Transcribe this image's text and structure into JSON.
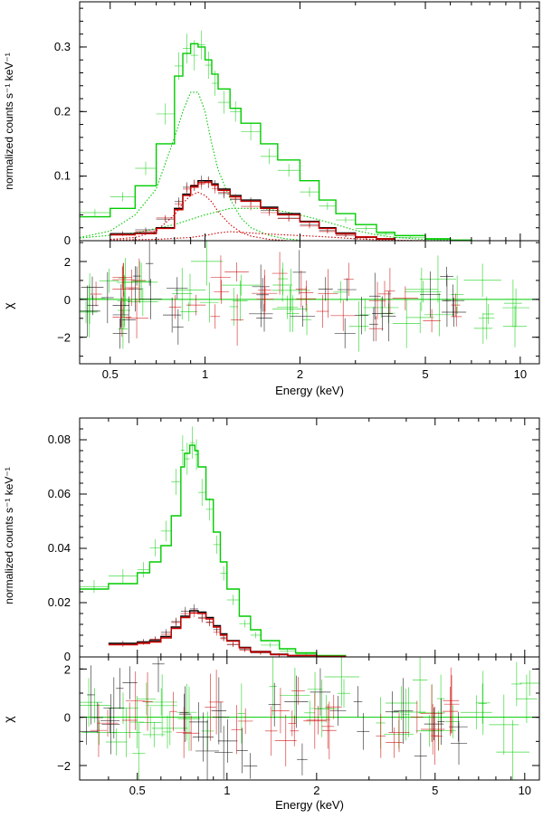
{
  "colors": {
    "black": "#000000",
    "red": "#cc0000",
    "green": "#00cc00"
  },
  "chart_data": [
    {
      "type": "line",
      "xscale": "log",
      "xlabel": "Energy (keV)",
      "xlim": [
        0.4,
        11.5
      ],
      "x_ticks": [
        0.5,
        1,
        2,
        5,
        10
      ],
      "x_tick_labels": [
        "0.5",
        "1",
        "2",
        "5",
        "10"
      ],
      "spectrum": {
        "ylabel": "normalized counts s⁻¹ keV⁻¹",
        "ylim": [
          0,
          0.37
        ],
        "y_ticks": [
          0,
          0.1,
          0.2,
          0.3
        ],
        "y_tick_labels": [
          "0",
          "0.1",
          "0.2",
          "0.3"
        ],
        "series": [
          {
            "color": "green",
            "style": "model",
            "x": [
              0.4,
              0.5,
              0.6,
              0.7,
              0.8,
              0.85,
              0.9,
              0.95,
              1.0,
              1.05,
              1.1,
              1.2,
              1.3,
              1.5,
              1.7,
              2.0,
              2.3,
              2.6,
              3.0,
              3.5,
              4.0,
              5.0,
              6.0,
              7.0
            ],
            "values": [
              0.037,
              0.05,
              0.085,
              0.15,
              0.255,
              0.29,
              0.305,
              0.3,
              0.28,
              0.258,
              0.235,
              0.205,
              0.182,
              0.15,
              0.125,
              0.093,
              0.063,
              0.042,
              0.025,
              0.013,
              0.008,
              0.003,
              0.001,
              0.0005
            ]
          },
          {
            "color": "green",
            "style": "component",
            "x": [
              0.4,
              0.5,
              0.6,
              0.7,
              0.8,
              0.85,
              0.9,
              0.95,
              1.0,
              1.05,
              1.1,
              1.2,
              1.3,
              1.4,
              1.6,
              1.8,
              2.0
            ],
            "values": [
              0.005,
              0.015,
              0.04,
              0.08,
              0.16,
              0.2,
              0.23,
              0.23,
              0.2,
              0.15,
              0.11,
              0.065,
              0.035,
              0.02,
              0.008,
              0.003,
              0.001
            ]
          },
          {
            "color": "green",
            "style": "component",
            "x": [
              0.4,
              0.6,
              0.8,
              1.0,
              1.2,
              1.5,
              1.8,
              2.2,
              2.6,
              3.0,
              3.5,
              4.0,
              5.0,
              6.0
            ],
            "values": [
              0.004,
              0.012,
              0.025,
              0.04,
              0.05,
              0.05,
              0.045,
              0.035,
              0.025,
              0.016,
              0.009,
              0.005,
              0.002,
              0.0008
            ]
          },
          {
            "color": "black",
            "style": "model",
            "x": [
              0.5,
              0.6,
              0.7,
              0.8,
              0.85,
              0.9,
              0.95,
              1.0,
              1.05,
              1.1,
              1.2,
              1.3,
              1.5,
              1.7,
              2.0,
              2.3,
              2.6,
              3.0,
              3.5,
              4.0
            ],
            "values": [
              0.01,
              0.012,
              0.02,
              0.05,
              0.072,
              0.085,
              0.093,
              0.093,
              0.088,
              0.08,
              0.07,
              0.063,
              0.052,
              0.042,
              0.03,
              0.02,
              0.012,
              0.006,
              0.003,
              0.001
            ]
          },
          {
            "color": "red",
            "style": "model",
            "x": [
              0.5,
              0.6,
              0.7,
              0.8,
              0.85,
              0.9,
              0.95,
              1.0,
              1.05,
              1.1,
              1.2,
              1.3,
              1.5,
              1.7,
              2.0,
              2.3,
              2.6,
              3.0,
              3.5,
              4.0
            ],
            "values": [
              0.009,
              0.011,
              0.019,
              0.048,
              0.07,
              0.083,
              0.09,
              0.091,
              0.086,
              0.078,
              0.068,
              0.061,
              0.05,
              0.04,
              0.029,
              0.019,
              0.011,
              0.006,
              0.003,
              0.001
            ]
          },
          {
            "color": "red",
            "style": "component",
            "x": [
              0.5,
              0.6,
              0.7,
              0.8,
              0.85,
              0.9,
              0.95,
              1.0,
              1.05,
              1.1,
              1.2,
              1.3,
              1.4,
              1.6,
              1.8
            ],
            "values": [
              0.002,
              0.005,
              0.015,
              0.04,
              0.058,
              0.07,
              0.075,
              0.07,
              0.06,
              0.045,
              0.025,
              0.013,
              0.007,
              0.002,
              0.0005
            ]
          },
          {
            "color": "red",
            "style": "component",
            "x": [
              0.5,
              0.7,
              0.9,
              1.0,
              1.1,
              1.2,
              1.3,
              1.5,
              1.8,
              2.2,
              2.6,
              3.0,
              3.5,
              4.0,
              4.5,
              5.0
            ],
            "values": [
              0.001,
              0.002,
              0.005,
              0.008,
              0.012,
              0.014,
              0.013,
              0.011,
              0.009,
              0.007,
              0.005,
              0.003,
              0.0015,
              0.0008,
              0.0004,
              0.0002
            ]
          }
        ]
      },
      "residuals": {
        "ylabel": "χ",
        "ylim": [
          -3.4,
          3.1
        ],
        "y_ticks": [
          -2,
          0,
          2
        ],
        "y_tick_labels": [
          "−2",
          "0",
          "2"
        ],
        "zero_line_color": "green"
      }
    },
    {
      "type": "line",
      "xscale": "log",
      "xlabel": "Energy (keV)",
      "xlim": [
        0.32,
        11.2
      ],
      "x_ticks": [
        0.5,
        1,
        2,
        5,
        10
      ],
      "x_tick_labels": [
        "0.5",
        "1",
        "2",
        "5",
        "10"
      ],
      "spectrum": {
        "ylabel": "normalized counts s⁻¹ keV⁻¹",
        "ylim": [
          0,
          0.088
        ],
        "y_ticks": [
          0,
          0.02,
          0.04,
          0.06,
          0.08
        ],
        "y_tick_labels": [
          "0",
          "0.02",
          "0.04",
          "0.06",
          "0.08"
        ],
        "series": [
          {
            "color": "green",
            "style": "model",
            "x": [
              0.32,
              0.4,
              0.5,
              0.55,
              0.6,
              0.65,
              0.7,
              0.72,
              0.75,
              0.78,
              0.8,
              0.85,
              0.9,
              0.95,
              1.0,
              1.1,
              1.2,
              1.3,
              1.5,
              1.7,
              2.0,
              2.5
            ],
            "values": [
              0.025,
              0.027,
              0.031,
              0.035,
              0.041,
              0.052,
              0.07,
              0.075,
              0.078,
              0.076,
              0.07,
              0.058,
              0.046,
              0.035,
              0.025,
              0.015,
              0.01,
              0.006,
              0.003,
              0.0015,
              0.0005,
              0.0001
            ]
          },
          {
            "color": "black",
            "style": "model",
            "x": [
              0.4,
              0.5,
              0.55,
              0.6,
              0.65,
              0.7,
              0.75,
              0.8,
              0.85,
              0.9,
              0.95,
              1.0,
              1.1,
              1.2,
              1.4,
              1.6,
              2.0,
              2.5
            ],
            "values": [
              0.005,
              0.0055,
              0.006,
              0.0075,
              0.011,
              0.015,
              0.017,
              0.0165,
              0.0145,
              0.0115,
              0.0085,
              0.006,
              0.0035,
              0.002,
              0.001,
              0.0005,
              0.0002,
              0.0001
            ]
          },
          {
            "color": "red",
            "style": "model",
            "x": [
              0.4,
              0.5,
              0.55,
              0.6,
              0.65,
              0.7,
              0.75,
              0.8,
              0.85,
              0.9,
              0.95,
              1.0,
              1.1,
              1.2,
              1.4,
              1.6,
              2.0,
              2.5
            ],
            "values": [
              0.0045,
              0.005,
              0.0055,
              0.007,
              0.0105,
              0.0145,
              0.0162,
              0.016,
              0.014,
              0.011,
              0.008,
              0.0058,
              0.0033,
              0.0019,
              0.0009,
              0.0005,
              0.0002,
              0.0001
            ]
          }
        ]
      },
      "residuals": {
        "ylabel": "χ",
        "ylim": [
          -2.6,
          2.5
        ],
        "y_ticks": [
          -2,
          0,
          2
        ],
        "y_tick_labels": [
          "−2",
          "0",
          "2"
        ],
        "zero_line_color": "green"
      }
    }
  ]
}
